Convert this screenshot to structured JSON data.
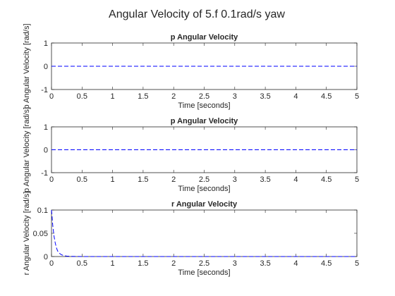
{
  "figure": {
    "title": "Angular Velocity of 5.f 0.1rad/s yaw",
    "series_color": "#0000ff"
  },
  "chart_data": [
    {
      "type": "line",
      "title": "p Angular Velocity",
      "xlabel": "Time [seconds]",
      "ylabel": "p Angular Velocity [rad/s]",
      "xlim": [
        0,
        5
      ],
      "ylim": [
        -1,
        1
      ],
      "xticks": [
        0,
        0.5,
        1,
        1.5,
        2,
        2.5,
        3,
        3.5,
        4,
        4.5,
        5
      ],
      "xtick_labels": [
        "0",
        "0.5",
        "1",
        "1.5",
        "2",
        "2.5",
        "3",
        "3.5",
        "4",
        "4.5",
        "5"
      ],
      "yticks": [
        -1,
        0,
        1
      ],
      "ytick_labels": [
        "-1",
        "0",
        "1"
      ],
      "grid": false,
      "series": [
        {
          "x": [
            0,
            5
          ],
          "y": [
            0,
            0
          ],
          "style": "dashed"
        }
      ]
    },
    {
      "type": "line",
      "title": "p Angular Velocity",
      "xlabel": "Time [seconds]",
      "ylabel": "p Angular Velocity [rad/s]",
      "xlim": [
        0,
        5
      ],
      "ylim": [
        -1,
        1
      ],
      "xticks": [
        0,
        0.5,
        1,
        1.5,
        2,
        2.5,
        3,
        3.5,
        4,
        4.5,
        5
      ],
      "xtick_labels": [
        "0",
        "0.5",
        "1",
        "1.5",
        "2",
        "2.5",
        "3",
        "3.5",
        "4",
        "4.5",
        "5"
      ],
      "yticks": [
        -1,
        0,
        1
      ],
      "ytick_labels": [
        "-1",
        "0",
        "1"
      ],
      "grid": false,
      "series": [
        {
          "x": [
            0,
            5
          ],
          "y": [
            0,
            0
          ],
          "style": "dashed"
        }
      ]
    },
    {
      "type": "line",
      "title": "r Angular Velocity",
      "xlabel": "Time [seconds]",
      "ylabel": "r Angular Velocity [rad/s]",
      "xlim": [
        0,
        5
      ],
      "ylim": [
        0,
        0.1
      ],
      "xticks": [
        0,
        0.5,
        1,
        1.5,
        2,
        2.5,
        3,
        3.5,
        4,
        4.5,
        5
      ],
      "xtick_labels": [
        "0",
        "0.5",
        "1",
        "1.5",
        "2",
        "2.5",
        "3",
        "3.5",
        "4",
        "4.5",
        "5"
      ],
      "yticks": [
        0,
        0.05,
        0.1
      ],
      "ytick_labels": [
        "0",
        "0.05",
        "0.1"
      ],
      "grid": false,
      "series": [
        {
          "x": [
            0,
            0.01,
            0.02,
            0.04,
            0.06,
            0.08,
            0.1,
            0.13,
            0.16,
            0.2,
            0.25,
            0.3,
            0.5,
            1,
            2,
            3,
            4,
            5
          ],
          "y": [
            0.1,
            0.085,
            0.068,
            0.045,
            0.03,
            0.019,
            0.012,
            0.007,
            0.004,
            0.002,
            0.001,
            0.0005,
            0,
            0,
            0,
            0,
            0,
            0
          ],
          "style": "dashed"
        }
      ]
    }
  ]
}
